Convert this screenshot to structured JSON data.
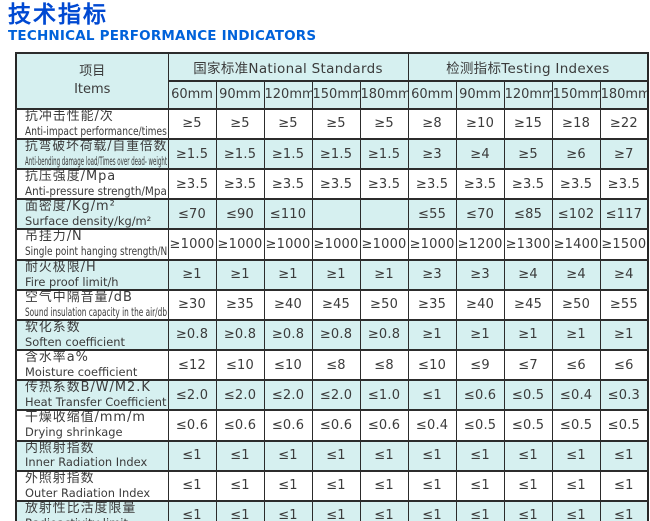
{
  "page": {
    "title_cn": "技术指标",
    "title_en": "TECHNICAL PERFORMANCE INDICATORS"
  },
  "colors": {
    "title_blue": "#0049d2",
    "subtitle_blue": "#0062da",
    "row_shade_cyan": "#d6f0f0",
    "border": "#2c2c2c",
    "cell_text": "#3b3b3b"
  },
  "table": {
    "items_header": {
      "cn": "项目",
      "en": "Items"
    },
    "groups": [
      {
        "label": "国家标准National Standards"
      },
      {
        "label": "检测指标Testing Indexes"
      }
    ],
    "sizes": [
      "60mm",
      "90mm",
      "120mm",
      "150mm",
      "180mm"
    ],
    "rows": [
      {
        "cn": "抗冲击性能/次",
        "en": "Anti-impact performance/times",
        "national": [
          "≥5",
          "≥5",
          "≥5",
          "≥5",
          "≥5"
        ],
        "testing": [
          "≥8",
          "≥10",
          "≥15",
          "≥18",
          "≥22"
        ]
      },
      {
        "cn": "抗弯破坏荷载/自重倍数",
        "en": "Anti-bending damage load/Times over dead- weight",
        "national": [
          "≥1.5",
          "≥1.5",
          "≥1.5",
          "≥1.5",
          "≥1.5"
        ],
        "testing": [
          "≥3",
          "≥4",
          "≥5",
          "≥6",
          "≥7"
        ]
      },
      {
        "cn": "抗压强度/Mpa",
        "en": "Anti-pressure strength/Mpa",
        "national": [
          "≥3.5",
          "≥3.5",
          "≥3.5",
          "≥3.5",
          "≥3.5"
        ],
        "testing": [
          "≥3.5",
          "≥3.5",
          "≥3.5",
          "≥3.5",
          "≥3.5"
        ]
      },
      {
        "cn": "面密度/Kg/m²",
        "en": "Surface density/kg/m²",
        "national": [
          "≤70",
          "≤90",
          "≤110",
          "",
          ""
        ],
        "testing": [
          "≤55",
          "≤70",
          "≤85",
          "≤102",
          "≤117"
        ]
      },
      {
        "cn": "吊挂力/N",
        "en": "Single point hanging strength/N",
        "national": [
          "≥1000",
          "≥1000",
          "≥1000",
          "≥1000",
          "≥1000"
        ],
        "testing": [
          "≥1000",
          "≥1200",
          "≥1300",
          "≥1400",
          "≥1500"
        ]
      },
      {
        "cn": "耐火极限/H",
        "en": "Fire proof limit/h",
        "national": [
          "≥1",
          "≥1",
          "≥1",
          "≥1",
          "≥1"
        ],
        "testing": [
          "≥3",
          "≥3",
          "≥4",
          "≥4",
          "≥4"
        ]
      },
      {
        "cn": "空气中隔音量/dB",
        "en": "Sound insulation capacity in the air/db",
        "national": [
          "≥30",
          "≥35",
          "≥40",
          "≥45",
          "≥50"
        ],
        "testing": [
          "≥35",
          "≥40",
          "≥45",
          "≥50",
          "≥55"
        ]
      },
      {
        "cn": "软化系数",
        "en": "Soften coefficient",
        "national": [
          "≥0.8",
          "≥0.8",
          "≥0.8",
          "≥0.8",
          "≥0.8"
        ],
        "testing": [
          "≥1",
          "≥1",
          "≥1",
          "≥1",
          "≥1"
        ]
      },
      {
        "cn": "含水率a%",
        "en": "Moisture coefficient",
        "national": [
          "≤12",
          "≤10",
          "≤10",
          "≤8",
          "≤8"
        ],
        "testing": [
          "≤10",
          "≤9",
          "≤7",
          "≤6",
          "≤6"
        ]
      },
      {
        "cn": "传热系数B/W/M2.K",
        "en": "Heat Transfer Coefficient",
        "national": [
          "≤2.0",
          "≤2.0",
          "≤2.0",
          "≤2.0",
          "≤1.0"
        ],
        "testing": [
          "≤1",
          "≤0.6",
          "≤0.5",
          "≤0.4",
          "≤0.3"
        ]
      },
      {
        "cn": "干燥收缩值/mm/m",
        "en": "Drying shrinkage",
        "national": [
          "≤0.6",
          "≤0.6",
          "≤0.6",
          "≤0.6",
          "≤0.6"
        ],
        "testing": [
          "≤0.4",
          "≤0.5",
          "≤0.5",
          "≤0.5",
          "≤0.5"
        ]
      },
      {
        "cn": "内照射指数",
        "en": "Inner Radiation Index",
        "national": [
          "≤1",
          "≤1",
          "≤1",
          "≤1",
          "≤1"
        ],
        "testing": [
          "≤1",
          "≤1",
          "≤1",
          "≤1",
          "≤1"
        ]
      },
      {
        "cn": "外照射指数",
        "en": "Outer Radiation Index",
        "national": [
          "≤1",
          "≤1",
          "≤1",
          "≤1",
          "≤1"
        ],
        "testing": [
          "≤1",
          "≤1",
          "≤1",
          "≤1",
          "≤1"
        ]
      },
      {
        "cn": "放射性比活度限量",
        "en": "Radioactivity limit",
        "national": [
          "≤1",
          "≤1",
          "≤1",
          "≤1",
          "≤1"
        ],
        "testing": [
          "≤1",
          "≤1",
          "≤1",
          "≤1",
          "≤1"
        ]
      }
    ]
  }
}
